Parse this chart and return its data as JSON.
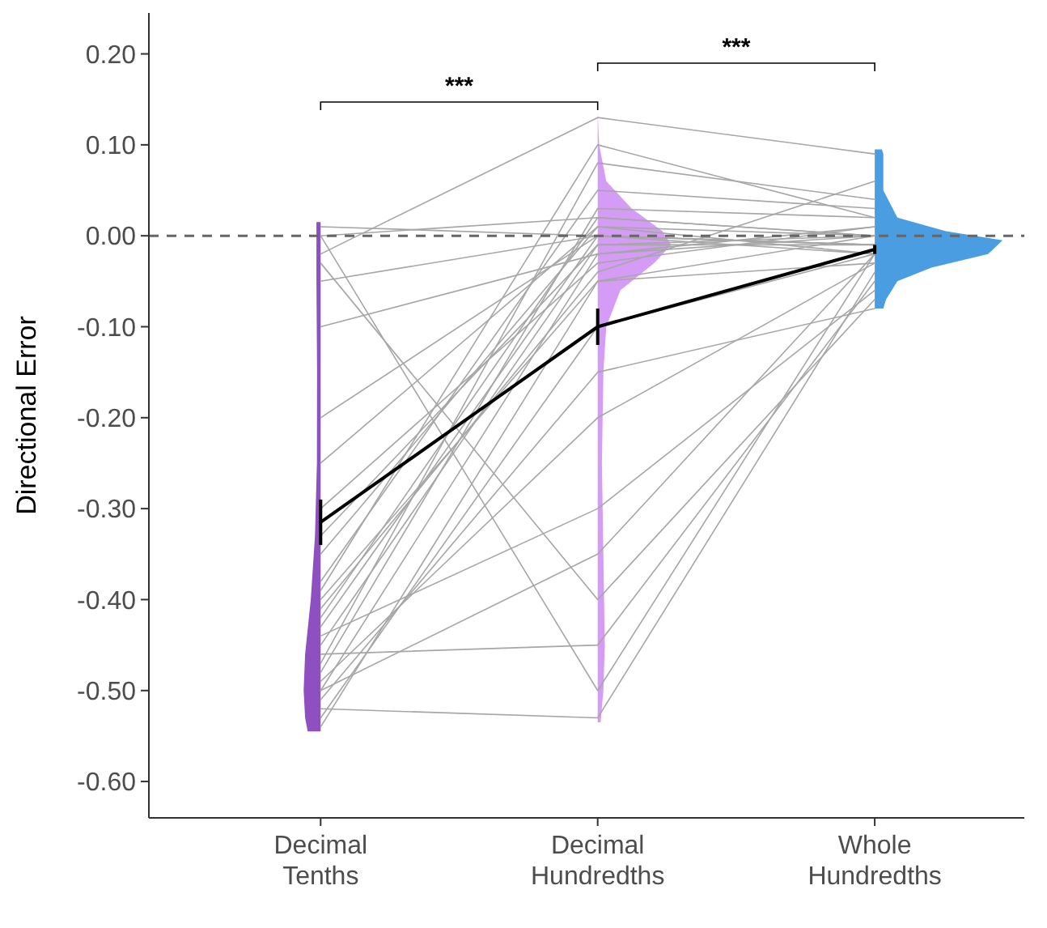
{
  "chart_data": {
    "type": "line",
    "ylabel": "Directional Error",
    "categories": [
      "Decimal Tenths",
      "Decimal Hundredths",
      "Whole Hundredths"
    ],
    "ylim": [
      -0.64,
      0.245
    ],
    "yticks": [
      {
        "value": -0.6,
        "label": "-0.60"
      },
      {
        "value": -0.5,
        "label": "-0.50"
      },
      {
        "value": -0.4,
        "label": "-0.40"
      },
      {
        "value": -0.3,
        "label": "-0.30"
      },
      {
        "value": -0.2,
        "label": "-0.20"
      },
      {
        "value": -0.1,
        "label": "-0.10"
      },
      {
        "value": 0,
        "label": "0.00"
      },
      {
        "value": 0.1,
        "label": "0.10"
      },
      {
        "value": 0.2,
        "label": "0.20"
      }
    ],
    "grid": false,
    "marker": "none",
    "ref_lines": [
      {
        "axis": "y",
        "value": 0,
        "color": "#666666",
        "line_style": "dashed"
      }
    ],
    "annotations": [
      "***",
      "***"
    ],
    "series": [
      {
        "color": "#a6a6a6",
        "values": [
          0.01,
          0.0,
          -0.01
        ]
      },
      {
        "color": "#a6a6a6",
        "values": [
          0.0,
          0.02,
          0.0
        ]
      },
      {
        "color": "#a6a6a6",
        "values": [
          -0.02,
          0.13,
          0.09
        ]
      },
      {
        "color": "#a6a6a6",
        "values": [
          -0.05,
          0.0,
          -0.01
        ]
      },
      {
        "color": "#a6a6a6",
        "values": [
          -0.1,
          -0.02,
          0.0
        ]
      },
      {
        "color": "#a6a6a6",
        "values": [
          -0.2,
          0.0,
          -0.02
        ]
      },
      {
        "color": "#a6a6a6",
        "values": [
          -0.3,
          -0.03,
          0.01
        ]
      },
      {
        "color": "#a6a6a6",
        "values": [
          -0.35,
          0.01,
          -0.02
        ]
      },
      {
        "color": "#a6a6a6",
        "values": [
          -0.4,
          -0.05,
          -0.03
        ]
      },
      {
        "color": "#a6a6a6",
        "values": [
          -0.42,
          0.02,
          0.0
        ]
      },
      {
        "color": "#a6a6a6",
        "values": [
          -0.45,
          -0.01,
          -0.01
        ]
      },
      {
        "color": "#a6a6a6",
        "values": [
          -0.46,
          -0.45,
          -0.05
        ]
      },
      {
        "color": "#a6a6a6",
        "values": [
          -0.48,
          0.03,
          0.02
        ]
      },
      {
        "color": "#a6a6a6",
        "values": [
          -0.5,
          -0.02,
          0.01
        ]
      },
      {
        "color": "#a6a6a6",
        "values": [
          -0.52,
          -0.53,
          -0.04
        ]
      },
      {
        "color": "#a6a6a6",
        "values": [
          -0.53,
          -0.1,
          -0.02
        ]
      },
      {
        "color": "#a6a6a6",
        "values": [
          -0.54,
          -0.05,
          0.0
        ]
      },
      {
        "color": "#a6a6a6",
        "values": [
          -0.44,
          -0.3,
          -0.06
        ]
      },
      {
        "color": "#a6a6a6",
        "values": [
          -0.38,
          0.05,
          0.03
        ]
      },
      {
        "color": "#a6a6a6",
        "values": [
          -0.49,
          -0.2,
          -0.03
        ]
      },
      {
        "color": "#a6a6a6",
        "values": [
          -0.33,
          -0.01,
          0.0
        ]
      },
      {
        "color": "#a6a6a6",
        "values": [
          -0.47,
          0.08,
          0.04
        ]
      },
      {
        "color": "#a6a6a6",
        "values": [
          -0.51,
          -0.15,
          -0.08
        ]
      },
      {
        "color": "#a6a6a6",
        "values": [
          0.0,
          -0.5,
          -0.02
        ]
      },
      {
        "color": "#a6a6a6",
        "values": [
          -0.03,
          -0.4,
          -0.07
        ]
      },
      {
        "color": "#a6a6a6",
        "values": [
          -0.43,
          0.0,
          -0.01
        ]
      },
      {
        "color": "#a6a6a6",
        "values": [
          -0.41,
          -0.04,
          0.06
        ]
      },
      {
        "color": "#a6a6a6",
        "values": [
          -0.25,
          0.01,
          0.0
        ]
      },
      {
        "color": "#a6a6a6",
        "values": [
          -0.5,
          -0.35,
          -0.02
        ]
      },
      {
        "color": "#a6a6a6",
        "values": [
          -0.39,
          0.1,
          0.02
        ]
      },
      {
        "color": "#000000",
        "values": [
          -0.315,
          -0.1,
          -0.015
        ],
        "errors": [
          0.025,
          0.02,
          0.005
        ]
      }
    ]
  }
}
